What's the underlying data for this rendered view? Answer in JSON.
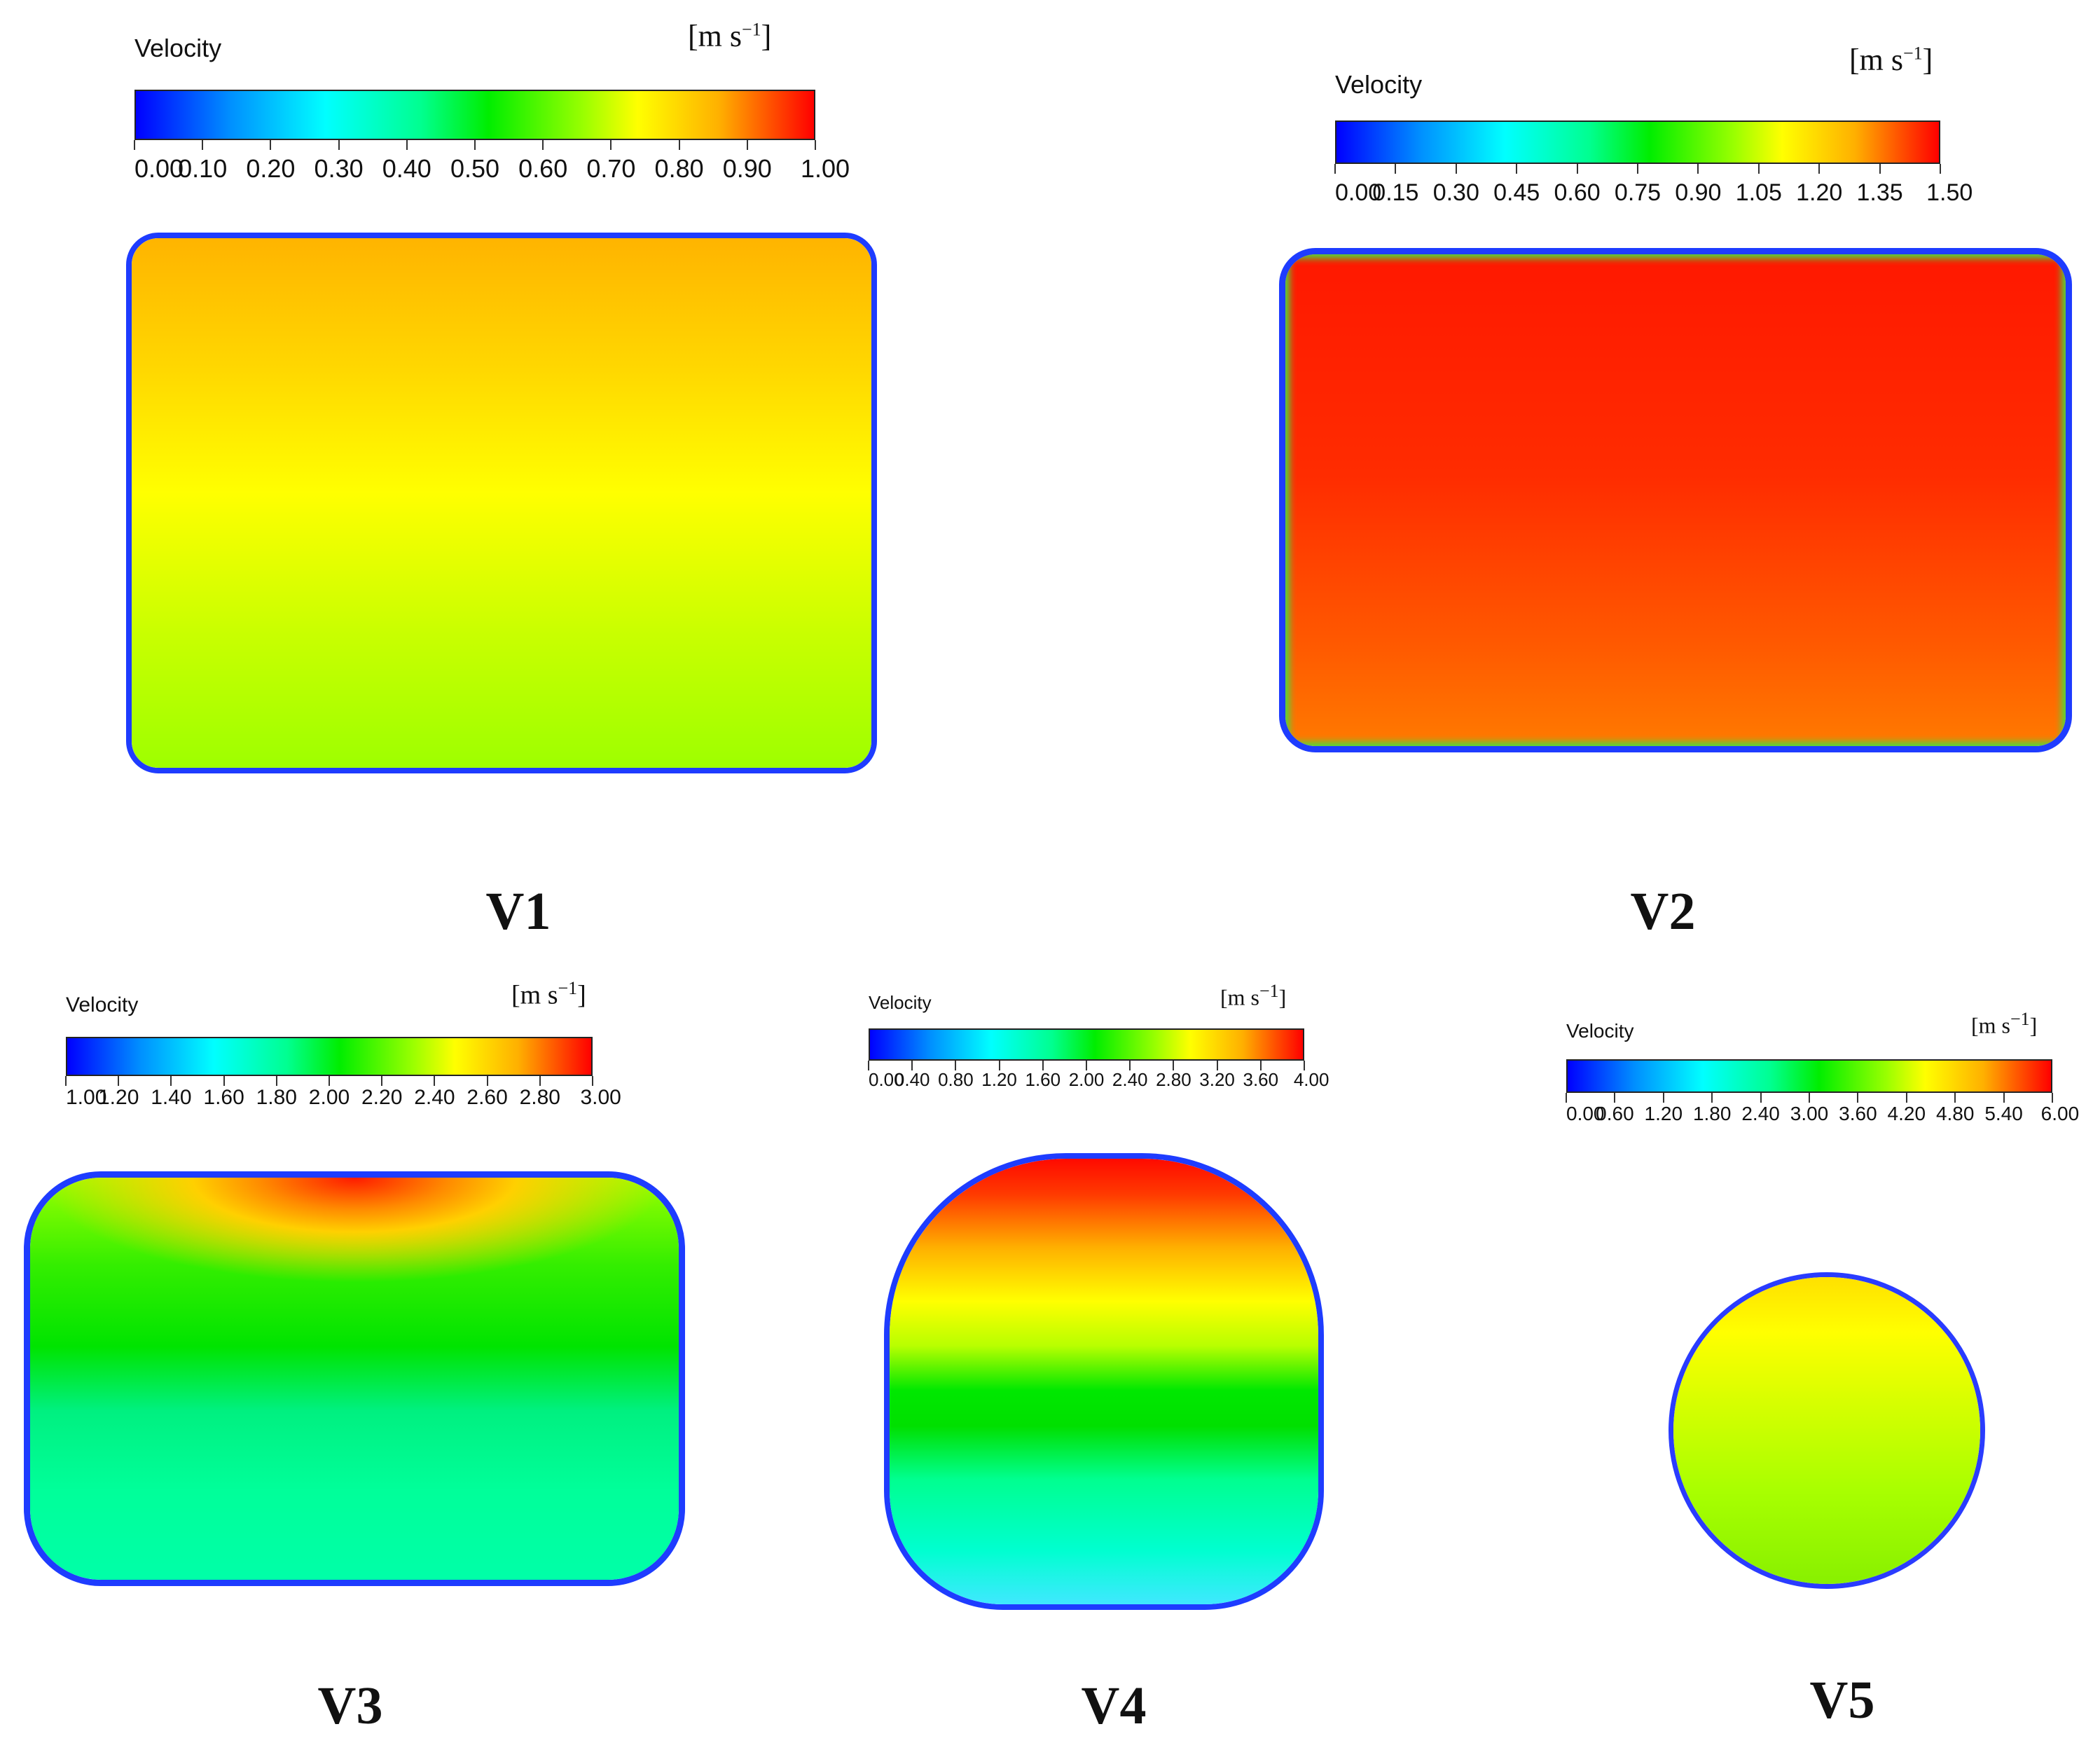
{
  "panels": [
    {
      "id": "V1",
      "label": "V1",
      "legend": {
        "title": "Velocity",
        "unit": "[m s",
        "unit_exp": "−1",
        "unit_close": "]",
        "ticks": [
          "0.00",
          "0.10",
          "0.20",
          "0.30",
          "0.40",
          "0.50",
          "0.60",
          "0.70",
          "0.80",
          "0.90",
          "1.00"
        ],
        "min": 0,
        "max": 1.0
      },
      "field": {
        "top_value": 0.8,
        "bottom_value": 0.62
      }
    },
    {
      "id": "V2",
      "label": "V2",
      "legend": {
        "title": "Velocity",
        "unit": "[m s",
        "unit_exp": "−1",
        "unit_close": "]",
        "ticks": [
          "0.00",
          "0.15",
          "0.30",
          "0.45",
          "0.60",
          "0.75",
          "0.90",
          "1.05",
          "1.20",
          "1.35",
          "1.50"
        ],
        "min": 0,
        "max": 1.5
      },
      "field": {
        "top_value": 1.48,
        "bottom_value": 1.32
      }
    },
    {
      "id": "V3",
      "label": "V3",
      "legend": {
        "title": "Velocity",
        "unit": "[m s",
        "unit_exp": "−1",
        "unit_close": "]",
        "ticks": [
          "1.00",
          "1.20",
          "1.40",
          "1.60",
          "1.80",
          "2.00",
          "2.20",
          "2.40",
          "2.60",
          "2.80",
          "3.00"
        ],
        "min": 1.0,
        "max": 3.0
      },
      "field": {
        "top_value": 2.9,
        "bottom_value": 1.6
      }
    },
    {
      "id": "V4",
      "label": "V4",
      "legend": {
        "title": "Velocity",
        "unit": "[m s",
        "unit_exp": "−1",
        "unit_close": "]",
        "ticks": [
          "0.00",
          "0.40",
          "0.80",
          "1.20",
          "1.60",
          "2.00",
          "2.40",
          "2.80",
          "3.20",
          "3.60",
          "4.00"
        ],
        "min": 0,
        "max": 4.0
      },
      "field": {
        "top_value": 3.9,
        "bottom_value": 1.1
      }
    },
    {
      "id": "V5",
      "label": "V5",
      "legend": {
        "title": "Velocity",
        "unit": "[m s",
        "unit_exp": "−1",
        "unit_close": "]",
        "ticks": [
          "0.00",
          "0.60",
          "1.20",
          "1.80",
          "2.40",
          "3.00",
          "3.60",
          "4.20",
          "4.80",
          "5.40",
          "6.00"
        ],
        "min": 0,
        "max": 6.0
      },
      "field": {
        "top_value": 4.3,
        "bottom_value": 3.4
      }
    }
  ],
  "colormap": [
    "#0000ff",
    "#0090ff",
    "#00ffff",
    "#00ff90",
    "#00ee00",
    "#9aff00",
    "#ffff00",
    "#ffb000",
    "#ff0000"
  ]
}
